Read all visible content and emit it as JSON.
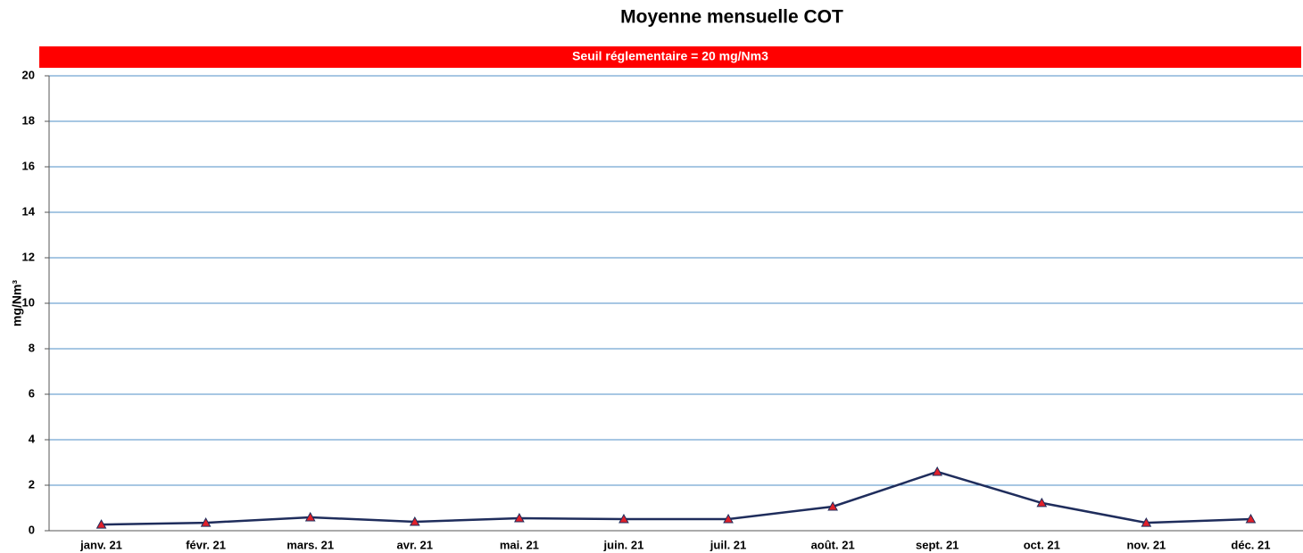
{
  "chart_data": {
    "type": "line",
    "title": "Moyenne mensuelle COT",
    "annotation": "Seuil réglementaire = 20 mg/Nm3",
    "y_label": "mg/Nm³",
    "categories": [
      "janv. 21",
      "févr. 21",
      "mars. 21",
      "avr. 21",
      "mai. 21",
      "juin. 21",
      "juil. 21",
      "août. 21",
      "sept. 21",
      "oct. 21",
      "nov. 21",
      "déc. 21"
    ],
    "series": [
      {
        "name": "COT",
        "color": "#1f2d5c",
        "marker_color": "#e0202a",
        "values": [
          0.27,
          0.35,
          0.59,
          0.39,
          0.55,
          0.51,
          0.51,
          1.06,
          2.59,
          1.22,
          0.35,
          0.51
        ]
      }
    ],
    "ylim": [
      0,
      20
    ],
    "yticks": [
      0,
      2,
      4,
      6,
      8,
      10,
      12,
      14,
      16,
      18,
      20
    ],
    "grid": true,
    "grid_color": "#4f8fc7",
    "annotation_color": "#ff0000"
  }
}
